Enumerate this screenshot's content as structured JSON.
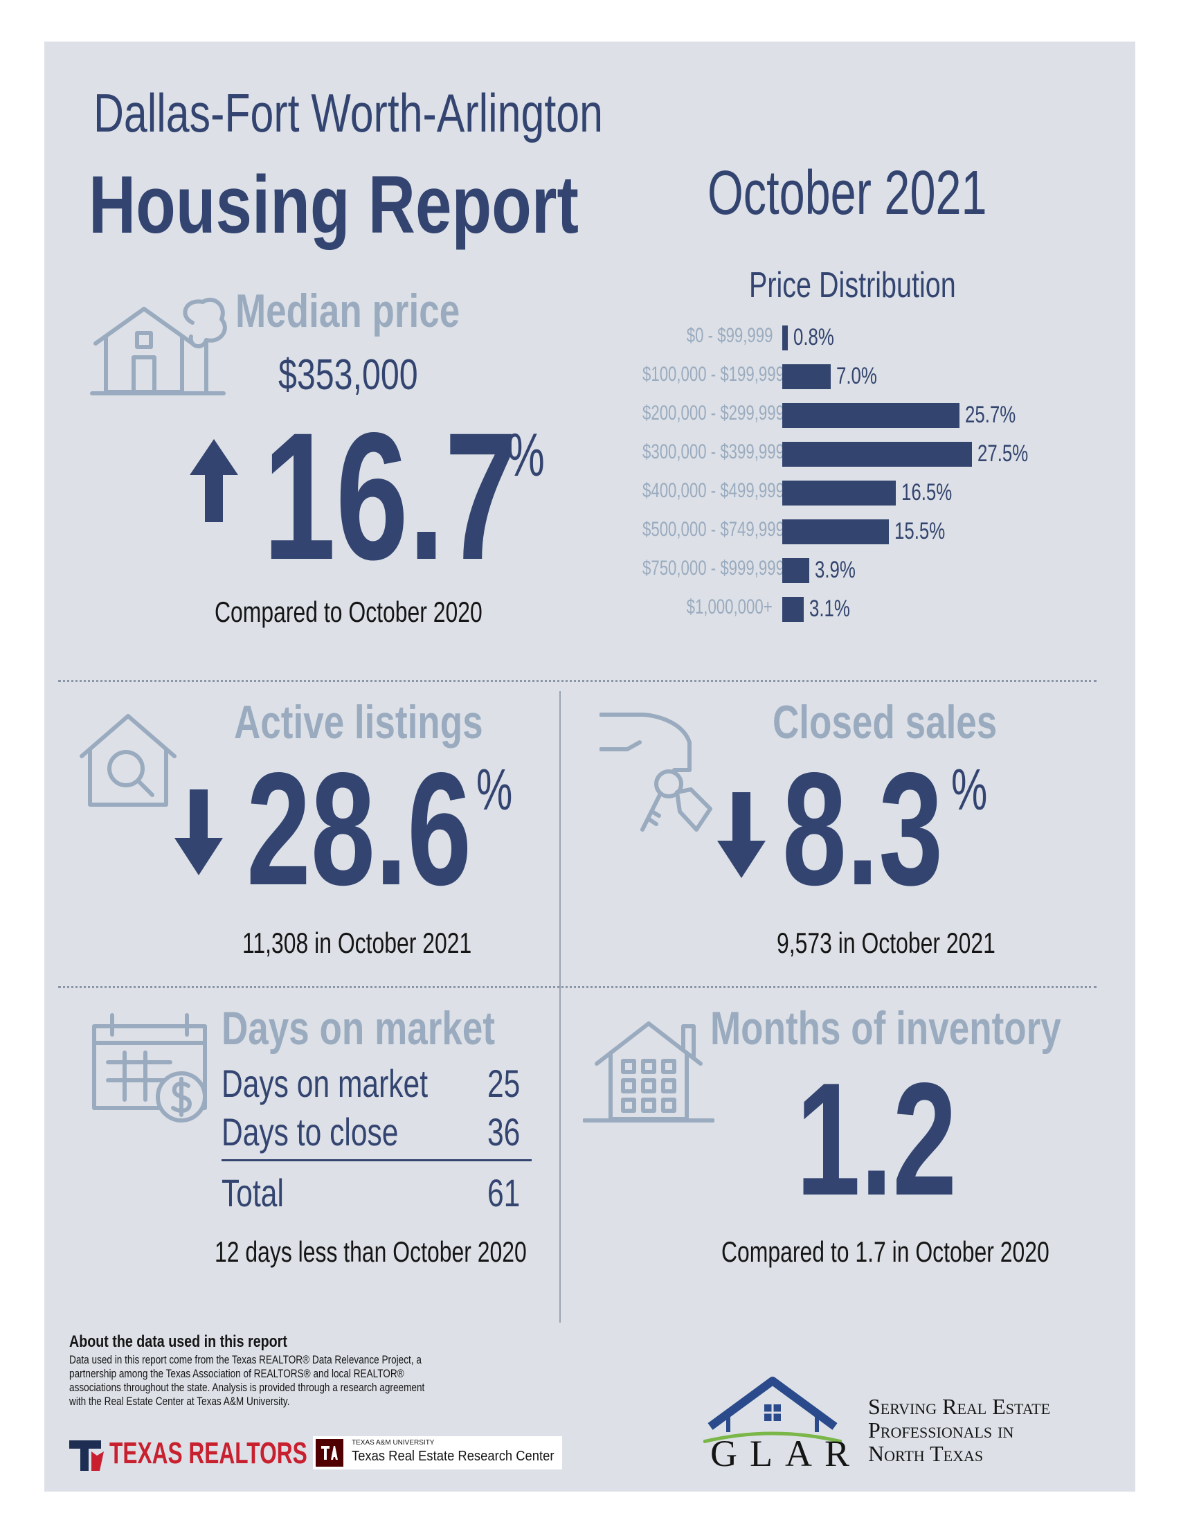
{
  "header": {
    "region": "Dallas-Fort Worth-Arlington",
    "title": "Housing Report",
    "month": "October 2021"
  },
  "median_price": {
    "label": "Median price",
    "value": "$353,000",
    "change": "16.7",
    "direction": "up",
    "pct_sign": "%",
    "note": "Compared to October 2020"
  },
  "price_distribution": {
    "title": "Price Distribution",
    "chart_data": {
      "type": "bar",
      "orientation": "horizontal",
      "title": "Price Distribution",
      "categories": [
        "$0 - $99,999",
        "$100,000 - $199,999",
        "$200,000 - $299,999",
        "$300,000 - $399,999",
        "$400,000 - $499,999",
        "$500,000 - $749,999",
        "$750,000 - $999,999",
        "$1,000,000+"
      ],
      "values": [
        0.8,
        7.0,
        25.7,
        27.5,
        16.5,
        15.5,
        3.9,
        3.1
      ],
      "labels": [
        "0.8%",
        "7.0%",
        "25.7%",
        "27.5%",
        "16.5%",
        "15.5%",
        "3.9%",
        "3.1%"
      ],
      "xlim": [
        0,
        27.5
      ],
      "grid": false
    }
  },
  "active_listings": {
    "label": "Active listings",
    "change": "28.6",
    "direction": "down",
    "pct_sign": "%",
    "note": "11,308 in October 2021"
  },
  "closed_sales": {
    "label": "Closed sales",
    "change": "8.3",
    "direction": "down",
    "pct_sign": "%",
    "note": "9,573 in October 2021"
  },
  "days_on_market": {
    "label": "Days on market",
    "rows": [
      {
        "label": "Days on market",
        "value": "25"
      },
      {
        "label": "Days to close",
        "value": "36"
      }
    ],
    "total_label": "Total",
    "total_value": "61",
    "note": "12 days less than October 2020"
  },
  "months_inventory": {
    "label": "Months of inventory",
    "value": "1.2",
    "note": "Compared to 1.7 in October 2020"
  },
  "footer": {
    "about_title": "About the data used in this report",
    "about_lines": [
      "Data used in this report come from the Texas REALTOR® Data Relevance Project, a",
      "partnership among the Texas Association of REALTORS® and local REALTOR®",
      "associations throughout the state. Analysis is provided through a research agreement",
      "with the Real Estate Center at Texas A&M University."
    ],
    "texas_realtors": "TEXAS REALTORS",
    "tamu_small": "TEXAS A&M UNIVERSITY",
    "tamu_name": "Texas Real Estate Research Center",
    "glar": "GLAR",
    "tagline": [
      "Serving Real Estate",
      "Professionals in",
      "North Texas"
    ]
  },
  "colors": {
    "navy": "#334470",
    "light_blue_gray": "#9aabbf",
    "panel": "#dde1e7",
    "glar_green": "#7ab648",
    "texas_red": "#c8202f"
  }
}
